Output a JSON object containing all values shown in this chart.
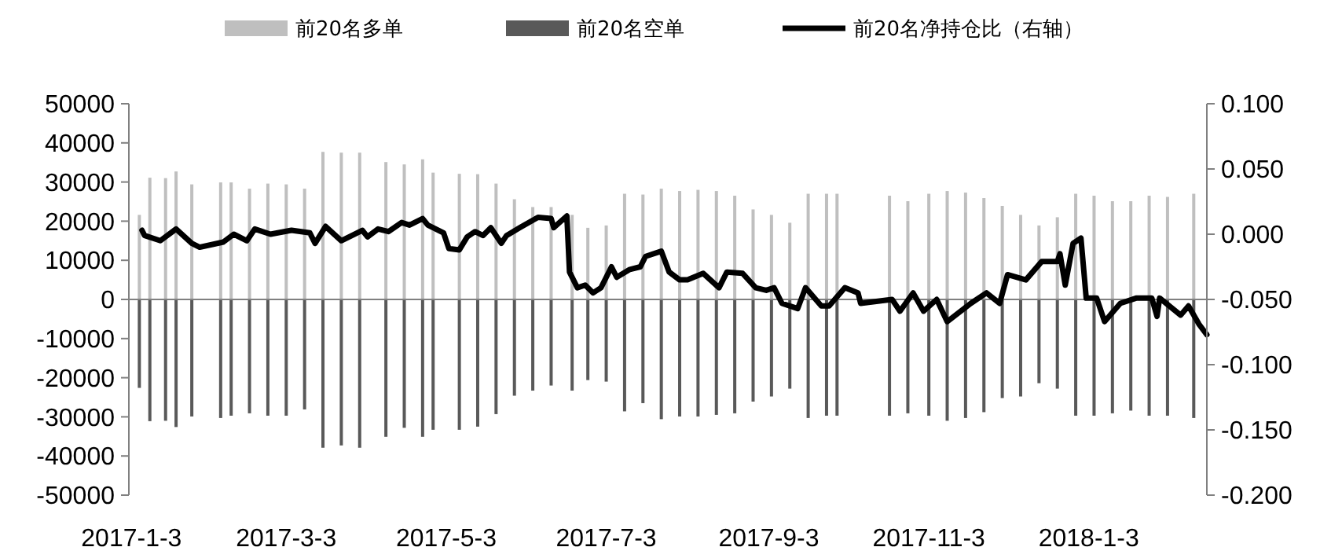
{
  "chart_data": {
    "type": "bar",
    "legend": "top",
    "x": [
      "2017-01-06",
      "2017-01-10",
      "2017-01-16",
      "2017-01-20",
      "2017-01-26",
      "2017-02-06",
      "2017-02-10",
      "2017-02-17",
      "2017-02-24",
      "2017-03-03",
      "2017-03-10",
      "2017-03-17",
      "2017-03-24",
      "2017-03-31",
      "2017-04-10",
      "2017-04-17",
      "2017-04-24",
      "2017-04-28",
      "2017-05-08",
      "2017-05-15",
      "2017-05-22",
      "2017-05-29",
      "2017-06-05",
      "2017-06-12",
      "2017-06-20",
      "2017-06-26",
      "2017-07-03",
      "2017-07-10",
      "2017-07-17",
      "2017-07-24",
      "2017-07-31",
      "2017-08-07",
      "2017-08-14",
      "2017-08-21",
      "2017-08-28",
      "2017-09-04",
      "2017-09-11",
      "2017-09-18",
      "2017-09-25",
      "2017-09-29",
      "2017-10-19",
      "2017-10-26",
      "2017-11-03",
      "2017-11-10",
      "2017-11-17",
      "2017-11-24",
      "2017-12-01",
      "2017-12-08",
      "2017-12-15",
      "2017-12-22",
      "2017-12-29",
      "2018-01-05",
      "2018-01-12",
      "2018-01-19",
      "2018-01-26",
      "2018-02-02",
      "2018-02-12"
    ],
    "xlim": [
      "2017-01-02",
      "2018-02-17"
    ],
    "xticks": [
      {
        "value": "2017-01-03",
        "label": "2017-1-3"
      },
      {
        "value": "2017-03-03",
        "label": "2017-3-3"
      },
      {
        "value": "2017-05-03",
        "label": "2017-5-3"
      },
      {
        "value": "2017-07-03",
        "label": "2017-7-3"
      },
      {
        "value": "2017-09-03",
        "label": "2017-9-3"
      },
      {
        "value": "2017-11-03",
        "label": "2017-11-3"
      },
      {
        "value": "2018-01-03",
        "label": "2018-1-3"
      }
    ],
    "ylim": [
      -50000,
      50000
    ],
    "yticks": [
      -50000,
      -40000,
      -30000,
      -20000,
      -10000,
      0,
      10000,
      20000,
      30000,
      40000,
      50000
    ],
    "y2lim": [
      -0.2,
      0.1
    ],
    "y2ticks": [
      {
        "value": -0.2,
        "label": "-0.200"
      },
      {
        "value": -0.15,
        "label": "-0.150"
      },
      {
        "value": -0.1,
        "label": "-0.100"
      },
      {
        "value": -0.05,
        "label": "-0.050"
      },
      {
        "value": 0,
        "label": "0.000"
      },
      {
        "value": 0.05,
        "label": "0.050"
      },
      {
        "value": 0.1,
        "label": "0.100"
      }
    ],
    "series": [
      {
        "name": "前20名多单",
        "color": "#bfbfbf",
        "values": [
          21600,
          31100,
          31000,
          32700,
          29400,
          29900,
          29900,
          28300,
          29600,
          29400,
          28300,
          37700,
          37500,
          37500,
          35100,
          34500,
          35800,
          32400,
          32100,
          32000,
          29600,
          25600,
          23600,
          23600,
          21600,
          18300,
          18900,
          27000,
          26800,
          28300,
          27700,
          28000,
          27700,
          26500,
          23000,
          21600,
          19600,
          27000,
          27000,
          27000,
          26500,
          25100,
          27000,
          27700,
          27300,
          25900,
          23900,
          21600,
          18900,
          21000,
          27000,
          26500,
          25100,
          25100,
          26500,
          26200,
          27000
        ]
      },
      {
        "name": "前20名空单",
        "color": "#595959",
        "values": [
          -22600,
          -31100,
          -31000,
          -32600,
          -29900,
          -30300,
          -29700,
          -29100,
          -29700,
          -29700,
          -28100,
          -37900,
          -37300,
          -37900,
          -35100,
          -32800,
          -35100,
          -33300,
          -33300,
          -32500,
          -29300,
          -24600,
          -23300,
          -22000,
          -23300,
          -20600,
          -21000,
          -28600,
          -26500,
          -30600,
          -29900,
          -29900,
          -29500,
          -29100,
          -26100,
          -24800,
          -22800,
          -30300,
          -29700,
          -29700,
          -29700,
          -29100,
          -29700,
          -31000,
          -30300,
          -28800,
          -25200,
          -24800,
          -21400,
          -22800,
          -29700,
          -29700,
          -29100,
          -28400,
          -29700,
          -29700,
          -30300
        ]
      },
      {
        "name": "前20名净持仓比（右轴）",
        "type": "line",
        "axis": "y2",
        "color": "#000000",
        "line_style": "solid",
        "marker": "none",
        "x": [
          "2017-01-07",
          "2017-01-08",
          "2017-01-14",
          "2017-01-20",
          "2017-01-26",
          "2017-01-29",
          "2017-02-07",
          "2017-02-11",
          "2017-02-16",
          "2017-02-19",
          "2017-02-25",
          "2017-03-05",
          "2017-03-12",
          "2017-03-14",
          "2017-03-18",
          "2017-03-24",
          "2017-04-01",
          "2017-04-03",
          "2017-04-07",
          "2017-04-11",
          "2017-04-16",
          "2017-04-19",
          "2017-04-24",
          "2017-04-26",
          "2017-05-02",
          "2017-05-04",
          "2017-05-08",
          "2017-05-11",
          "2017-05-14",
          "2017-05-17",
          "2017-05-20",
          "2017-05-24",
          "2017-05-26",
          "2017-05-31",
          "2017-06-07",
          "2017-06-12",
          "2017-06-13",
          "2017-06-18",
          "2017-06-19",
          "2017-06-22",
          "2017-06-25",
          "2017-06-28",
          "2017-07-01",
          "2017-07-05",
          "2017-07-07",
          "2017-07-12",
          "2017-07-16",
          "2017-07-18",
          "2017-07-24",
          "2017-07-27",
          "2017-07-31",
          "2017-08-03",
          "2017-08-09",
          "2017-08-15",
          "2017-08-18",
          "2017-08-24",
          "2017-08-29",
          "2017-09-02",
          "2017-09-05",
          "2017-09-08",
          "2017-09-14",
          "2017-09-17",
          "2017-09-23",
          "2017-09-26",
          "2017-10-02",
          "2017-10-07",
          "2017-10-08",
          "2017-10-20",
          "2017-10-23",
          "2017-10-28",
          "2017-11-01",
          "2017-11-06",
          "2017-11-10",
          "2017-11-19",
          "2017-11-25",
          "2017-11-30",
          "2017-12-03",
          "2017-12-10",
          "2017-12-16",
          "2017-12-22",
          "2017-12-23",
          "2017-12-25",
          "2017-12-28",
          "2017-12-31",
          "2018-01-02",
          "2018-01-06",
          "2018-01-09",
          "2018-01-15",
          "2018-01-21",
          "2018-01-27",
          "2018-01-29",
          "2018-01-30",
          "2018-02-07",
          "2018-02-10",
          "2018-02-14",
          "2018-02-17"
        ],
        "values": [
          0.003,
          -0.001,
          -0.005,
          0.004,
          -0.007,
          -0.01,
          -0.006,
          0.0,
          -0.005,
          0.004,
          0.0,
          0.003,
          0.001,
          -0.007,
          0.006,
          -0.005,
          0.003,
          -0.002,
          0.004,
          0.002,
          0.009,
          0.007,
          0.012,
          0.007,
          0.001,
          -0.011,
          -0.012,
          -0.002,
          0.002,
          -0.001,
          0.005,
          -0.007,
          -0.001,
          0.005,
          0.013,
          0.012,
          0.005,
          0.014,
          -0.029,
          -0.041,
          -0.039,
          -0.045,
          -0.041,
          -0.025,
          -0.033,
          -0.027,
          -0.025,
          -0.017,
          -0.013,
          -0.029,
          -0.035,
          -0.035,
          -0.03,
          -0.041,
          -0.029,
          -0.03,
          -0.041,
          -0.043,
          -0.041,
          -0.053,
          -0.057,
          -0.041,
          -0.055,
          -0.055,
          -0.041,
          -0.045,
          -0.053,
          -0.05,
          -0.059,
          -0.045,
          -0.059,
          -0.05,
          -0.067,
          -0.053,
          -0.045,
          -0.053,
          -0.031,
          -0.035,
          -0.021,
          -0.021,
          -0.015,
          -0.039,
          -0.007,
          -0.003,
          -0.049,
          -0.049,
          -0.067,
          -0.053,
          -0.049,
          -0.049,
          -0.063,
          -0.049,
          -0.062,
          -0.055,
          -0.069,
          -0.077
        ]
      }
    ]
  }
}
